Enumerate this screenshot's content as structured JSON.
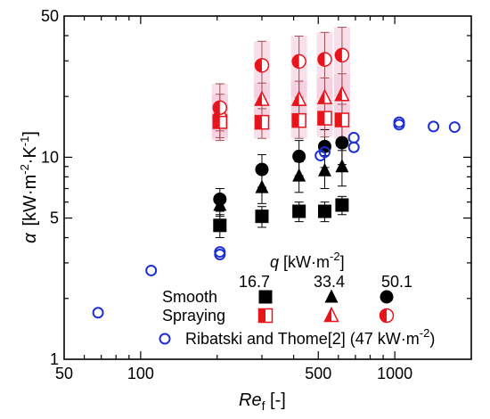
{
  "chart_data": {
    "type": "scatter",
    "xlabel": "Re",
    "xlabel_sub": "f",
    "xlabel_unit": " [-]",
    "ylabel_symbol": "α",
    "ylabel_unit": "[kW·m",
    "ylabel_exp1": "-2",
    "ylabel_mid": "·K",
    "ylabel_exp2": "-1",
    "ylabel_close": "]",
    "xscale": "log",
    "yscale": "log",
    "xlim": [
      50,
      2000
    ],
    "ylim": [
      1,
      50
    ],
    "x_ticks": [
      {
        "value": 50,
        "label": "50"
      },
      {
        "value": 100,
        "label": "100"
      },
      {
        "value": 500,
        "label": "500"
      },
      {
        "value": 1000,
        "label": "1000"
      }
    ],
    "y_ticks": [
      {
        "value": 1,
        "label": "1"
      },
      {
        "value": 5,
        "label": "5"
      },
      {
        "value": 10,
        "label": "10"
      },
      {
        "value": 50,
        "label": "50"
      }
    ],
    "colors": {
      "smooth": "#000000",
      "spraying": "#e8141c",
      "spraying_errorbar": "#a05050",
      "spraying_band": "#f4c4d8",
      "ribatski": "#1f2fd6"
    },
    "series": [
      {
        "key": "smooth_16_7",
        "group": "Smooth",
        "q": "16.7",
        "marker": "square",
        "points": [
          {
            "x": 205,
            "y": 4.6,
            "err": 0.6
          },
          {
            "x": 300,
            "y": 5.1,
            "err": 0.6
          },
          {
            "x": 420,
            "y": 5.4,
            "err": 0.6
          },
          {
            "x": 530,
            "y": 5.4,
            "err": 0.6
          },
          {
            "x": 620,
            "y": 5.8,
            "err": 0.6
          }
        ]
      },
      {
        "key": "smooth_33_4",
        "group": "Smooth",
        "q": "33.4",
        "marker": "triangle",
        "points": [
          {
            "x": 205,
            "y": 5.8,
            "err": 0.7
          },
          {
            "x": 300,
            "y": 7.1,
            "err": 1.2
          },
          {
            "x": 420,
            "y": 8.1,
            "err": 1.4
          },
          {
            "x": 530,
            "y": 8.6,
            "err": 1.6
          },
          {
            "x": 620,
            "y": 9.0,
            "err": 1.8
          }
        ]
      },
      {
        "key": "smooth_50_1",
        "group": "Smooth",
        "q": "50.1",
        "marker": "circle",
        "points": [
          {
            "x": 205,
            "y": 6.2,
            "err": 0.8
          },
          {
            "x": 300,
            "y": 8.7,
            "err": 1.6
          },
          {
            "x": 420,
            "y": 10.1,
            "err": 2.0
          },
          {
            "x": 530,
            "y": 11.3,
            "err": 2.4
          },
          {
            "x": 620,
            "y": 11.8,
            "err": 2.6
          }
        ]
      },
      {
        "key": "spraying_16_7",
        "group": "Spraying",
        "q": "16.7",
        "marker": "square-half",
        "points": [
          {
            "x": 205,
            "y": 15.0,
            "err": 2.5
          },
          {
            "x": 300,
            "y": 14.9,
            "err": 2.5
          },
          {
            "x": 420,
            "y": 15.2,
            "err": 2.8
          },
          {
            "x": 530,
            "y": 15.6,
            "err": 3.0
          },
          {
            "x": 620,
            "y": 15.3,
            "err": 3.0
          }
        ]
      },
      {
        "key": "spraying_33_4",
        "group": "Spraying",
        "q": "33.4",
        "marker": "triangle-half",
        "points": [
          {
            "x": 205,
            "y": 17.0,
            "err": 3.5
          },
          {
            "x": 300,
            "y": 19.3,
            "err": 4.0
          },
          {
            "x": 420,
            "y": 19.3,
            "err": 4.5
          },
          {
            "x": 530,
            "y": 19.7,
            "err": 5.0
          },
          {
            "x": 620,
            "y": 20.4,
            "err": 5.5
          }
        ]
      },
      {
        "key": "spraying_50_1",
        "group": "Spraying",
        "q": "50.1",
        "marker": "circle-half",
        "points": [
          {
            "x": 205,
            "y": 17.6,
            "err": 5.5
          },
          {
            "x": 300,
            "y": 28.5,
            "err": 9.0
          },
          {
            "x": 420,
            "y": 29.8,
            "err": 10.0
          },
          {
            "x": 530,
            "y": 30.5,
            "err": 11.0
          },
          {
            "x": 620,
            "y": 32.0,
            "err": 12.0
          }
        ]
      },
      {
        "key": "ribatski",
        "group": "Ribatski",
        "name": "Ribatski and Thome[2] (47 kW·m",
        "marker": "open-circle",
        "points": [
          {
            "x": 68,
            "y": 1.7
          },
          {
            "x": 110,
            "y": 2.75
          },
          {
            "x": 205,
            "y": 3.3
          },
          {
            "x": 205,
            "y": 3.4
          },
          {
            "x": 510,
            "y": 10.2
          },
          {
            "x": 530,
            "y": 10.6
          },
          {
            "x": 690,
            "y": 11.2
          },
          {
            "x": 690,
            "y": 12.5
          },
          {
            "x": 1040,
            "y": 14.5
          },
          {
            "x": 1040,
            "y": 14.9
          },
          {
            "x": 1420,
            "y": 14.2
          },
          {
            "x": 1720,
            "y": 14.1
          }
        ]
      }
    ],
    "legend": {
      "q_label": "q",
      "q_unit": " [kW·m",
      "q_exp": "-2",
      "q_close": "]",
      "q_values": [
        "16.7",
        "33.4",
        "50.1"
      ],
      "row_smooth": "Smooth",
      "row_spraying": "Spraying",
      "ribatski_label": "Ribatski and Thome[2] (47 kW·m",
      "ribatski_exp": "-2",
      "ribatski_close": ")"
    }
  }
}
